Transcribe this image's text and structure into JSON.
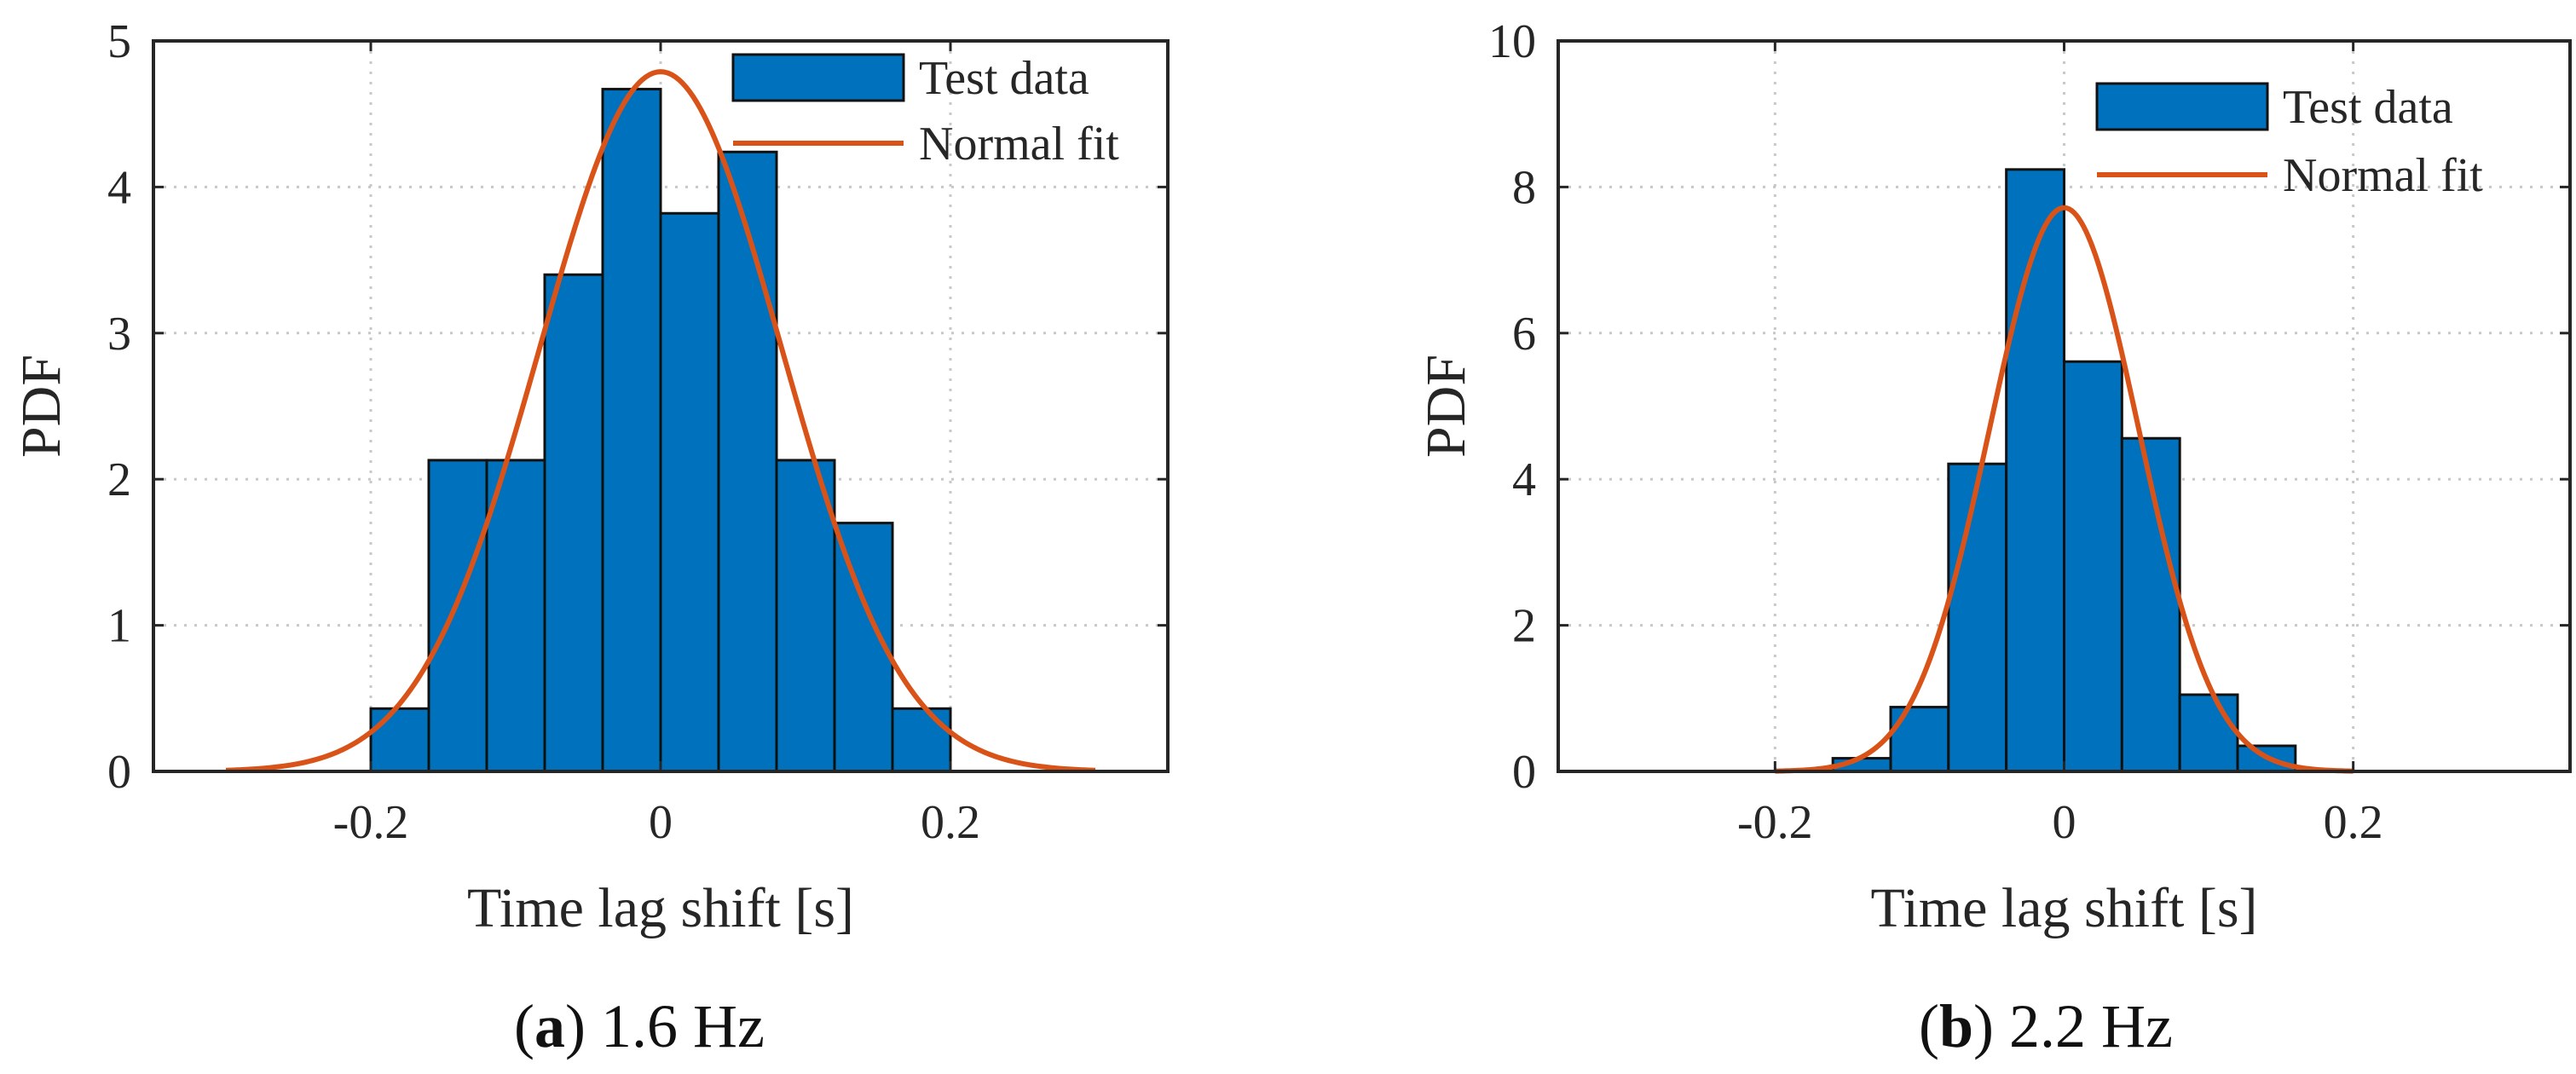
{
  "chart_data": [
    {
      "type": "bar",
      "panel_label": "a",
      "panel_caption": "1.6 Hz",
      "xlabel": "Time lag shift [s]",
      "ylabel": "PDF",
      "xlim": [
        -0.35,
        0.35
      ],
      "ylim": [
        0,
        5
      ],
      "xticks": [
        -0.2,
        0,
        0.2
      ],
      "xtick_labels": [
        "-0.2",
        "0",
        "0.2"
      ],
      "yticks": [
        0,
        1,
        2,
        3,
        4,
        5
      ],
      "ytick_labels": [
        "0",
        "1",
        "2",
        "3",
        "4",
        "5"
      ],
      "grid": true,
      "legend_position": "top-right",
      "series": [
        {
          "name": "Test data",
          "kind": "histogram",
          "color": "#0072BD",
          "bin_edges": [
            -0.2,
            -0.16,
            -0.12,
            -0.08,
            -0.04,
            0.0,
            0.04,
            0.08,
            0.12,
            0.16,
            0.2
          ],
          "values": [
            0.43,
            2.13,
            2.13,
            3.4,
            4.67,
            3.82,
            4.24,
            2.13,
            1.7,
            0.43
          ]
        },
        {
          "name": "Normal fit",
          "kind": "normal_pdf",
          "color": "#D95319",
          "mu": 0.0,
          "sigma": 0.0833,
          "x_range": [
            -0.3,
            0.3
          ]
        }
      ]
    },
    {
      "type": "bar",
      "panel_label": "b",
      "panel_caption": "2.2 Hz",
      "xlabel": "Time lag shift [s]",
      "ylabel": "PDF",
      "xlim": [
        -0.35,
        0.35
      ],
      "ylim": [
        0,
        10
      ],
      "xticks": [
        -0.2,
        0,
        0.2
      ],
      "xtick_labels": [
        "-0.2",
        "0",
        "0.2"
      ],
      "yticks": [
        0,
        2,
        4,
        6,
        8,
        10
      ],
      "ytick_labels": [
        "0",
        "2",
        "4",
        "6",
        "8",
        "10"
      ],
      "grid": true,
      "legend_position": "top-right",
      "series": [
        {
          "name": "Test data",
          "kind": "histogram",
          "color": "#0072BD",
          "bin_edges": [
            -0.16,
            -0.12,
            -0.08,
            -0.04,
            0.0,
            0.04,
            0.08,
            0.12,
            0.16
          ],
          "values": [
            0.18,
            0.88,
            4.21,
            8.24,
            5.61,
            4.56,
            1.05,
            0.35
          ]
        },
        {
          "name": "Normal fit",
          "kind": "normal_pdf",
          "color": "#D95319",
          "mu": 0.0,
          "sigma": 0.0517,
          "x_range": [
            -0.2,
            0.2
          ]
        }
      ]
    }
  ]
}
